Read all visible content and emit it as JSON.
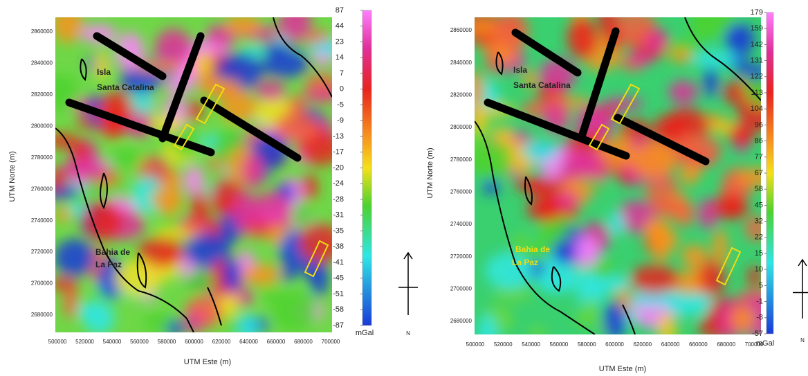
{
  "panels": [
    {
      "y_label": "UTM Norte (m)",
      "x_label": "UTM Este (m)",
      "y_ticks": [
        2860000,
        2840000,
        2820000,
        2800000,
        2780000,
        2760000,
        2740000,
        2720000,
        2700000,
        2680000
      ],
      "x_ticks": [
        500000,
        520000,
        540000,
        560000,
        580000,
        600000,
        620000,
        640000,
        660000,
        680000,
        700000
      ],
      "colorbar": {
        "labels": [
          87,
          44,
          23,
          14,
          7,
          0,
          -5,
          -9,
          -13,
          -17,
          -20,
          -24,
          -28,
          -31,
          -35,
          -38,
          -41,
          -45,
          -51,
          -58,
          -87
        ],
        "unit": "mGal"
      },
      "annotations": [
        "Isla",
        "Santa Catalina",
        "Bahia de",
        "La Paz"
      ],
      "north": "N"
    },
    {
      "y_label": "UTM Norte (m)",
      "x_label": "UTM Este (m)",
      "y_ticks": [
        2860000,
        2840000,
        2820000,
        2800000,
        2780000,
        2760000,
        2740000,
        2720000,
        2700000,
        2680000
      ],
      "x_ticks": [
        500000,
        520000,
        540000,
        560000,
        580000,
        600000,
        620000,
        640000,
        660000,
        680000,
        700000
      ],
      "colorbar": {
        "labels": [
          179,
          159,
          142,
          131,
          122,
          113,
          104,
          96,
          86,
          77,
          67,
          58,
          45,
          32,
          22,
          15,
          10,
          5,
          -1,
          -8,
          -57
        ],
        "unit": "mGal"
      },
      "annotations": [
        "Isla",
        "Santa Catalina",
        "Bahia de",
        "La Paz"
      ],
      "north": "N"
    }
  ]
}
